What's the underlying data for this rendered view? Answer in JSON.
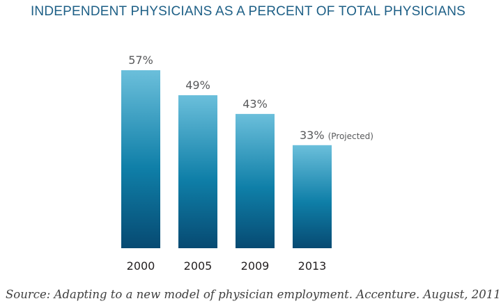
{
  "chart_data": {
    "type": "bar",
    "title": "INDEPENDENT PHYSICIANS AS A PERCENT OF TOTAL PHYSICIANS",
    "categories": [
      "2000",
      "2005",
      "2009",
      "2013"
    ],
    "values": [
      57,
      49,
      43,
      33
    ],
    "value_labels": [
      "57%",
      "49%",
      "43%",
      "33%"
    ],
    "annotations": [
      "",
      "",
      "",
      "(Projected)"
    ],
    "unit": "%",
    "ylim": [
      0,
      60
    ],
    "grid": false,
    "legend": "none",
    "colors": {
      "bar_top": "#6bbfdb",
      "bar_mid": "#0f7fa8",
      "bar_bottom": "#074a72",
      "title": "#1d5f86"
    }
  },
  "source": "Source: Adapting to a new model of physician employment. Accenture. August, 2011"
}
